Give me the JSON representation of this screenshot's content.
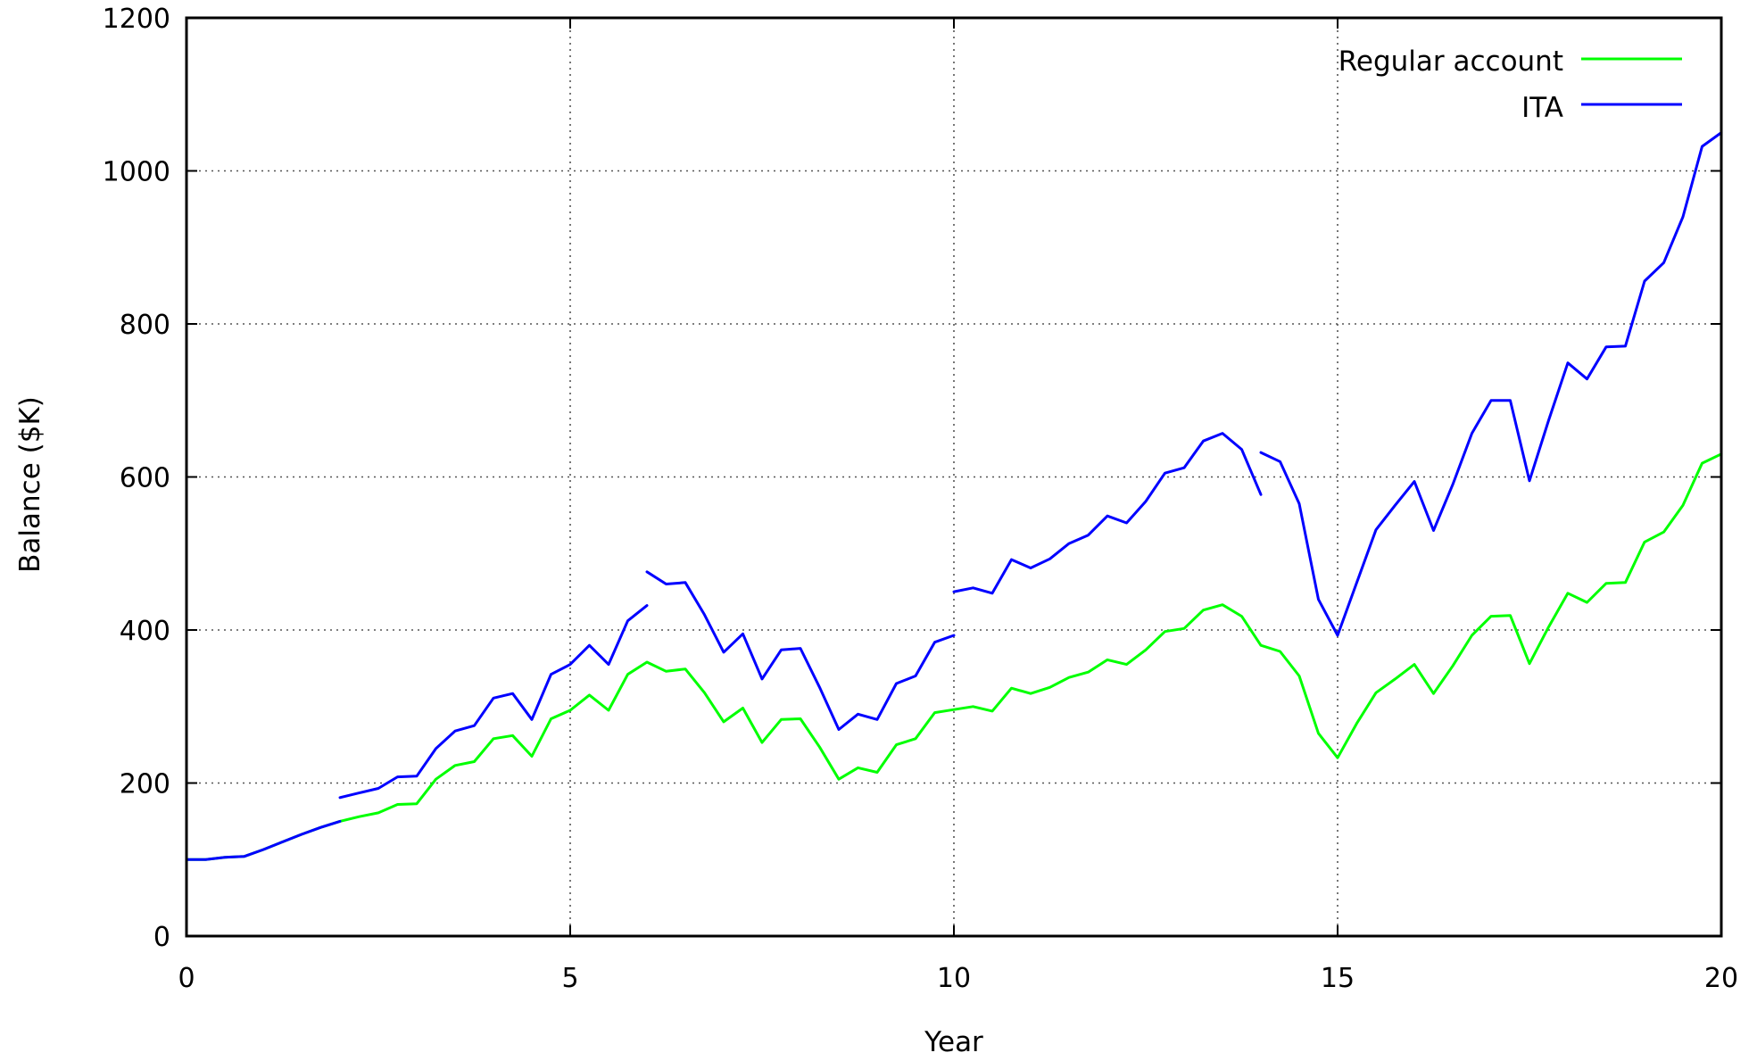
{
  "chart_data": {
    "type": "line",
    "title": "",
    "xlabel": "Year",
    "ylabel": "Balance ($K)",
    "xlim": [
      0,
      20
    ],
    "ylim": [
      0,
      1200
    ],
    "xticks": [
      0,
      5,
      10,
      15,
      20
    ],
    "yticks": [
      0,
      200,
      400,
      600,
      800,
      1000,
      1200
    ],
    "grid": true,
    "legend_position": "top-right",
    "series": [
      {
        "name": "Regular account",
        "color": "#00ff00",
        "segments": [
          [
            [
              0,
              100
            ],
            [
              0.25,
              100
            ],
            [
              0.5,
              103
            ],
            [
              0.75,
              104
            ],
            [
              1.0,
              113
            ],
            [
              1.25,
              123
            ],
            [
              1.5,
              133
            ],
            [
              1.75,
              142
            ],
            [
              2.0,
              150
            ],
            [
              2.25,
              156
            ],
            [
              2.5,
              161
            ],
            [
              2.75,
              172
            ],
            [
              3.0,
              173
            ],
            [
              3.25,
              205
            ],
            [
              3.5,
              223
            ],
            [
              3.75,
              228
            ],
            [
              4.0,
              258
            ],
            [
              4.25,
              262
            ],
            [
              4.5,
              235
            ],
            [
              4.75,
              284
            ],
            [
              5.0,
              295
            ],
            [
              5.25,
              315
            ],
            [
              5.5,
              295
            ],
            [
              5.75,
              342
            ],
            [
              6.0,
              358
            ],
            [
              6.25,
              346
            ],
            [
              6.5,
              349
            ],
            [
              6.75,
              318
            ],
            [
              7.0,
              280
            ],
            [
              7.25,
              298
            ],
            [
              7.5,
              253
            ],
            [
              7.75,
              283
            ],
            [
              8.0,
              284
            ],
            [
              8.25,
              247
            ],
            [
              8.5,
              205
            ],
            [
              8.75,
              220
            ],
            [
              9.0,
              214
            ],
            [
              9.25,
              250
            ],
            [
              9.5,
              258
            ],
            [
              9.75,
              292
            ],
            [
              10.0,
              296
            ],
            [
              10.25,
              300
            ],
            [
              10.5,
              294
            ],
            [
              10.75,
              324
            ],
            [
              11.0,
              317
            ],
            [
              11.25,
              325
            ],
            [
              11.5,
              338
            ],
            [
              11.75,
              345
            ],
            [
              12.0,
              361
            ],
            [
              12.25,
              355
            ],
            [
              12.5,
              374
            ],
            [
              12.75,
              398
            ],
            [
              13.0,
              402
            ],
            [
              13.25,
              426
            ],
            [
              13.5,
              433
            ],
            [
              13.75,
              418
            ],
            [
              14.0,
              380
            ],
            [
              14.25,
              372
            ],
            [
              14.5,
              340
            ],
            [
              14.75,
              265
            ],
            [
              15.0,
              233
            ],
            [
              15.25,
              278
            ],
            [
              15.5,
              318
            ],
            [
              15.75,
              336
            ],
            [
              16.0,
              355
            ],
            [
              16.25,
              317
            ],
            [
              16.5,
              353
            ],
            [
              16.75,
              393
            ],
            [
              17.0,
              418
            ],
            [
              17.25,
              419
            ],
            [
              17.5,
              356
            ],
            [
              17.75,
              404
            ],
            [
              18.0,
              448
            ],
            [
              18.25,
              436
            ],
            [
              18.5,
              461
            ],
            [
              18.75,
              462
            ],
            [
              19.0,
              515
            ],
            [
              19.25,
              528
            ],
            [
              19.5,
              563
            ],
            [
              19.75,
              618
            ],
            [
              20.0,
              630
            ]
          ]
        ]
      },
      {
        "name": "ITA",
        "color": "#0000ff",
        "segments": [
          [
            [
              0,
              100
            ],
            [
              0.25,
              100
            ],
            [
              0.5,
              103
            ],
            [
              0.75,
              104
            ],
            [
              1.0,
              113
            ],
            [
              1.25,
              123
            ],
            [
              1.5,
              133
            ],
            [
              1.75,
              142
            ],
            [
              2.0,
              150
            ]
          ],
          [
            [
              2.0,
              181
            ],
            [
              2.25,
              187
            ],
            [
              2.5,
              193
            ],
            [
              2.75,
              208
            ],
            [
              3.0,
              209
            ],
            [
              3.25,
              245
            ],
            [
              3.5,
              268
            ],
            [
              3.75,
              275
            ],
            [
              4.0,
              311
            ],
            [
              4.25,
              317
            ],
            [
              4.5,
              283
            ],
            [
              4.75,
              342
            ],
            [
              5.0,
              355
            ],
            [
              5.25,
              380
            ],
            [
              5.5,
              355
            ],
            [
              5.75,
              412
            ],
            [
              6.0,
              432
            ]
          ],
          [
            [
              6.0,
              476
            ],
            [
              6.25,
              460
            ],
            [
              6.5,
              462
            ],
            [
              6.75,
              420
            ],
            [
              7.0,
              371
            ],
            [
              7.25,
              395
            ],
            [
              7.5,
              336
            ],
            [
              7.75,
              374
            ],
            [
              8.0,
              376
            ],
            [
              8.25,
              325
            ],
            [
              8.5,
              270
            ],
            [
              8.75,
              290
            ],
            [
              9.0,
              283
            ],
            [
              9.25,
              330
            ],
            [
              9.5,
              340
            ],
            [
              9.75,
              384
            ],
            [
              10.0,
              393
            ]
          ],
          [
            [
              10.0,
              450
            ],
            [
              10.25,
              455
            ],
            [
              10.5,
              448
            ],
            [
              10.75,
              492
            ],
            [
              11.0,
              481
            ],
            [
              11.25,
              493
            ],
            [
              11.5,
              513
            ],
            [
              11.75,
              524
            ],
            [
              12.0,
              549
            ],
            [
              12.25,
              540
            ],
            [
              12.5,
              568
            ],
            [
              12.75,
              605
            ],
            [
              13.0,
              612
            ],
            [
              13.25,
              647
            ],
            [
              13.5,
              657
            ],
            [
              13.75,
              636
            ],
            [
              14.0,
              577
            ]
          ],
          [
            [
              14.0,
              632
            ],
            [
              14.25,
              620
            ],
            [
              14.5,
              565
            ],
            [
              14.75,
              440
            ],
            [
              15.0,
              393
            ],
            [
              15.25,
              462
            ],
            [
              15.5,
              531
            ],
            [
              15.75,
              563
            ],
            [
              16.0,
              594
            ],
            [
              16.25,
              530
            ],
            [
              16.5,
              590
            ],
            [
              16.75,
              657
            ],
            [
              17.0,
              700
            ],
            [
              17.25,
              700
            ],
            [
              17.5,
              595
            ],
            [
              17.75,
              674
            ],
            [
              18.0,
              749
            ],
            [
              18.25,
              728
            ],
            [
              18.5,
              770
            ],
            [
              18.75,
              771
            ],
            [
              19.0,
              856
            ],
            [
              19.25,
              880
            ],
            [
              19.5,
              940
            ],
            [
              19.75,
              1032
            ],
            [
              20.0,
              1050
            ]
          ]
        ]
      }
    ]
  }
}
